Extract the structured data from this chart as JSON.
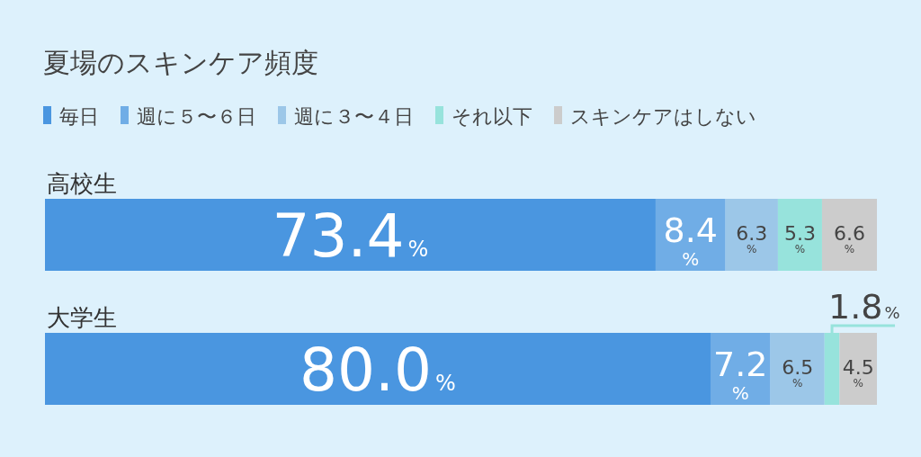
{
  "chart_data": {
    "type": "bar",
    "orientation": "horizontal",
    "stacked": true,
    "title": "夏場のスキンケア頻度",
    "categories": [
      "高校生",
      "大学生"
    ],
    "xlim": [
      0,
      100
    ],
    "legend": "top left",
    "series": [
      {
        "name": "毎日",
        "color": "#4a96e0",
        "values": [
          73.4,
          80.0
        ],
        "value_labels": [
          "73.4%",
          "80.0%"
        ]
      },
      {
        "name": "週に５〜６日",
        "color": "#70ade6",
        "values": [
          8.4,
          7.2
        ],
        "value_labels": [
          "8.4%",
          "7.2%"
        ]
      },
      {
        "name": "週に３〜４日",
        "color": "#9cc7e8",
        "values": [
          6.3,
          6.5
        ],
        "value_labels": [
          "6.3%",
          "6.5%"
        ]
      },
      {
        "name": "それ以下",
        "color": "#97e3dc",
        "values": [
          5.3,
          1.8
        ],
        "value_labels": [
          "5.3%",
          "1.8%"
        ]
      },
      {
        "name": "スキンケアはしない",
        "color": "#cccccc",
        "values": [
          6.6,
          4.5
        ],
        "value_labels": [
          "6.6%",
          "4.5%"
        ]
      }
    ]
  }
}
